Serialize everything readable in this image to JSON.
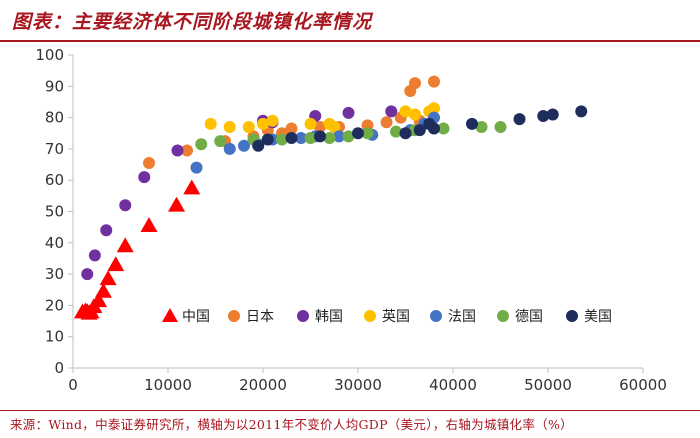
{
  "header": {
    "title": "图表：主要经济体不同阶段城镇化率情况"
  },
  "footer": {
    "source": "来源：Wind，中泰证券研究所，横轴为以2011年不变价人均GDP（美元），右轴为城镇化率（%）"
  },
  "chart_data": {
    "type": "scatter",
    "title": "",
    "xlabel": "",
    "ylabel": "",
    "xlim": [
      0,
      60000
    ],
    "ylim": [
      0,
      100
    ],
    "x_ticks": [
      0,
      10000,
      20000,
      30000,
      40000,
      50000,
      60000
    ],
    "y_ticks": [
      0,
      10,
      20,
      30,
      40,
      50,
      60,
      70,
      80,
      90,
      100
    ],
    "x_tick_labels": [
      "0",
      "10000",
      "20000",
      "30000",
      "40000",
      "50000",
      "60000"
    ],
    "y_tick_labels": [
      "0",
      "10",
      "20",
      "30",
      "40",
      "50",
      "60",
      "70",
      "80",
      "90",
      "100"
    ],
    "grid": false,
    "legend_position": "bottom",
    "series": [
      {
        "name": "中国",
        "color": "#ff0000",
        "marker": "triangle",
        "points": [
          [
            1000,
            17.9
          ],
          [
            1300,
            18.2
          ],
          [
            1500,
            18
          ],
          [
            1700,
            17.5
          ],
          [
            1900,
            17.9
          ],
          [
            2200,
            19.6
          ],
          [
            2700,
            21.5
          ],
          [
            3200,
            24.5
          ],
          [
            3700,
            28.5
          ],
          [
            4500,
            33
          ],
          [
            5500,
            39
          ],
          [
            8000,
            45.5
          ],
          [
            10900,
            52
          ],
          [
            12500,
            57.5
          ]
        ]
      },
      {
        "name": "日本",
        "color": "#ed7d31",
        "marker": "circle",
        "points": [
          [
            8000,
            65.5
          ],
          [
            12000,
            69.5
          ],
          [
            16000,
            72.5
          ],
          [
            19000,
            74
          ],
          [
            20500,
            76
          ],
          [
            22000,
            75
          ],
          [
            23000,
            76.5
          ],
          [
            26000,
            77
          ],
          [
            28000,
            77
          ],
          [
            31000,
            77.5
          ],
          [
            33000,
            78.5
          ],
          [
            34500,
            80
          ],
          [
            35500,
            88.5
          ],
          [
            36000,
            91
          ],
          [
            38000,
            91.5
          ],
          [
            36500,
            79
          ]
        ]
      },
      {
        "name": "韩国",
        "color": "#7030a0",
        "marker": "circle",
        "points": [
          [
            1500,
            30
          ],
          [
            2300,
            36
          ],
          [
            3500,
            44
          ],
          [
            5500,
            52
          ],
          [
            7500,
            61
          ],
          [
            11000,
            69.5
          ],
          [
            20000,
            79
          ],
          [
            21000,
            78.5
          ],
          [
            25500,
            80.5
          ],
          [
            29000,
            81.5
          ],
          [
            33500,
            82
          ]
        ]
      },
      {
        "name": "英国",
        "color": "#ffc000",
        "marker": "circle",
        "points": [
          [
            14500,
            78
          ],
          [
            16500,
            77
          ],
          [
            18500,
            77
          ],
          [
            20000,
            78
          ],
          [
            21000,
            79
          ],
          [
            25000,
            78
          ],
          [
            27000,
            78
          ],
          [
            27500,
            77
          ],
          [
            35000,
            82
          ],
          [
            36000,
            81
          ],
          [
            37500,
            82
          ],
          [
            38000,
            83
          ]
        ]
      },
      {
        "name": "法国",
        "color": "#4472c4",
        "marker": "circle",
        "points": [
          [
            13000,
            64
          ],
          [
            16500,
            70
          ],
          [
            18000,
            71
          ],
          [
            19500,
            71.5
          ],
          [
            21000,
            73
          ],
          [
            24000,
            73.5
          ],
          [
            25500,
            74
          ],
          [
            28000,
            74
          ],
          [
            31500,
            74.5
          ],
          [
            35500,
            76
          ],
          [
            37000,
            78
          ],
          [
            38000,
            80
          ]
        ]
      },
      {
        "name": "德国",
        "color": "#70ad47",
        "marker": "circle",
        "points": [
          [
            13500,
            71.5
          ],
          [
            15500,
            72.5
          ],
          [
            19000,
            73
          ],
          [
            22000,
            73
          ],
          [
            25000,
            73.5
          ],
          [
            27000,
            73.5
          ],
          [
            29000,
            74
          ],
          [
            31000,
            75
          ],
          [
            34000,
            75.5
          ],
          [
            36000,
            76
          ],
          [
            39000,
            76.5
          ],
          [
            43000,
            77
          ],
          [
            45000,
            77
          ]
        ]
      },
      {
        "name": "美国",
        "color": "#1f2d5c",
        "marker": "circle",
        "points": [
          [
            19500,
            71
          ],
          [
            20500,
            73
          ],
          [
            23000,
            73.5
          ],
          [
            26000,
            74
          ],
          [
            30000,
            75
          ],
          [
            35000,
            75
          ],
          [
            36500,
            76
          ],
          [
            37500,
            78
          ],
          [
            38000,
            76.5
          ],
          [
            42000,
            78
          ],
          [
            47000,
            79.5
          ],
          [
            49500,
            80.5
          ],
          [
            50500,
            81
          ],
          [
            53500,
            82
          ]
        ]
      }
    ]
  }
}
